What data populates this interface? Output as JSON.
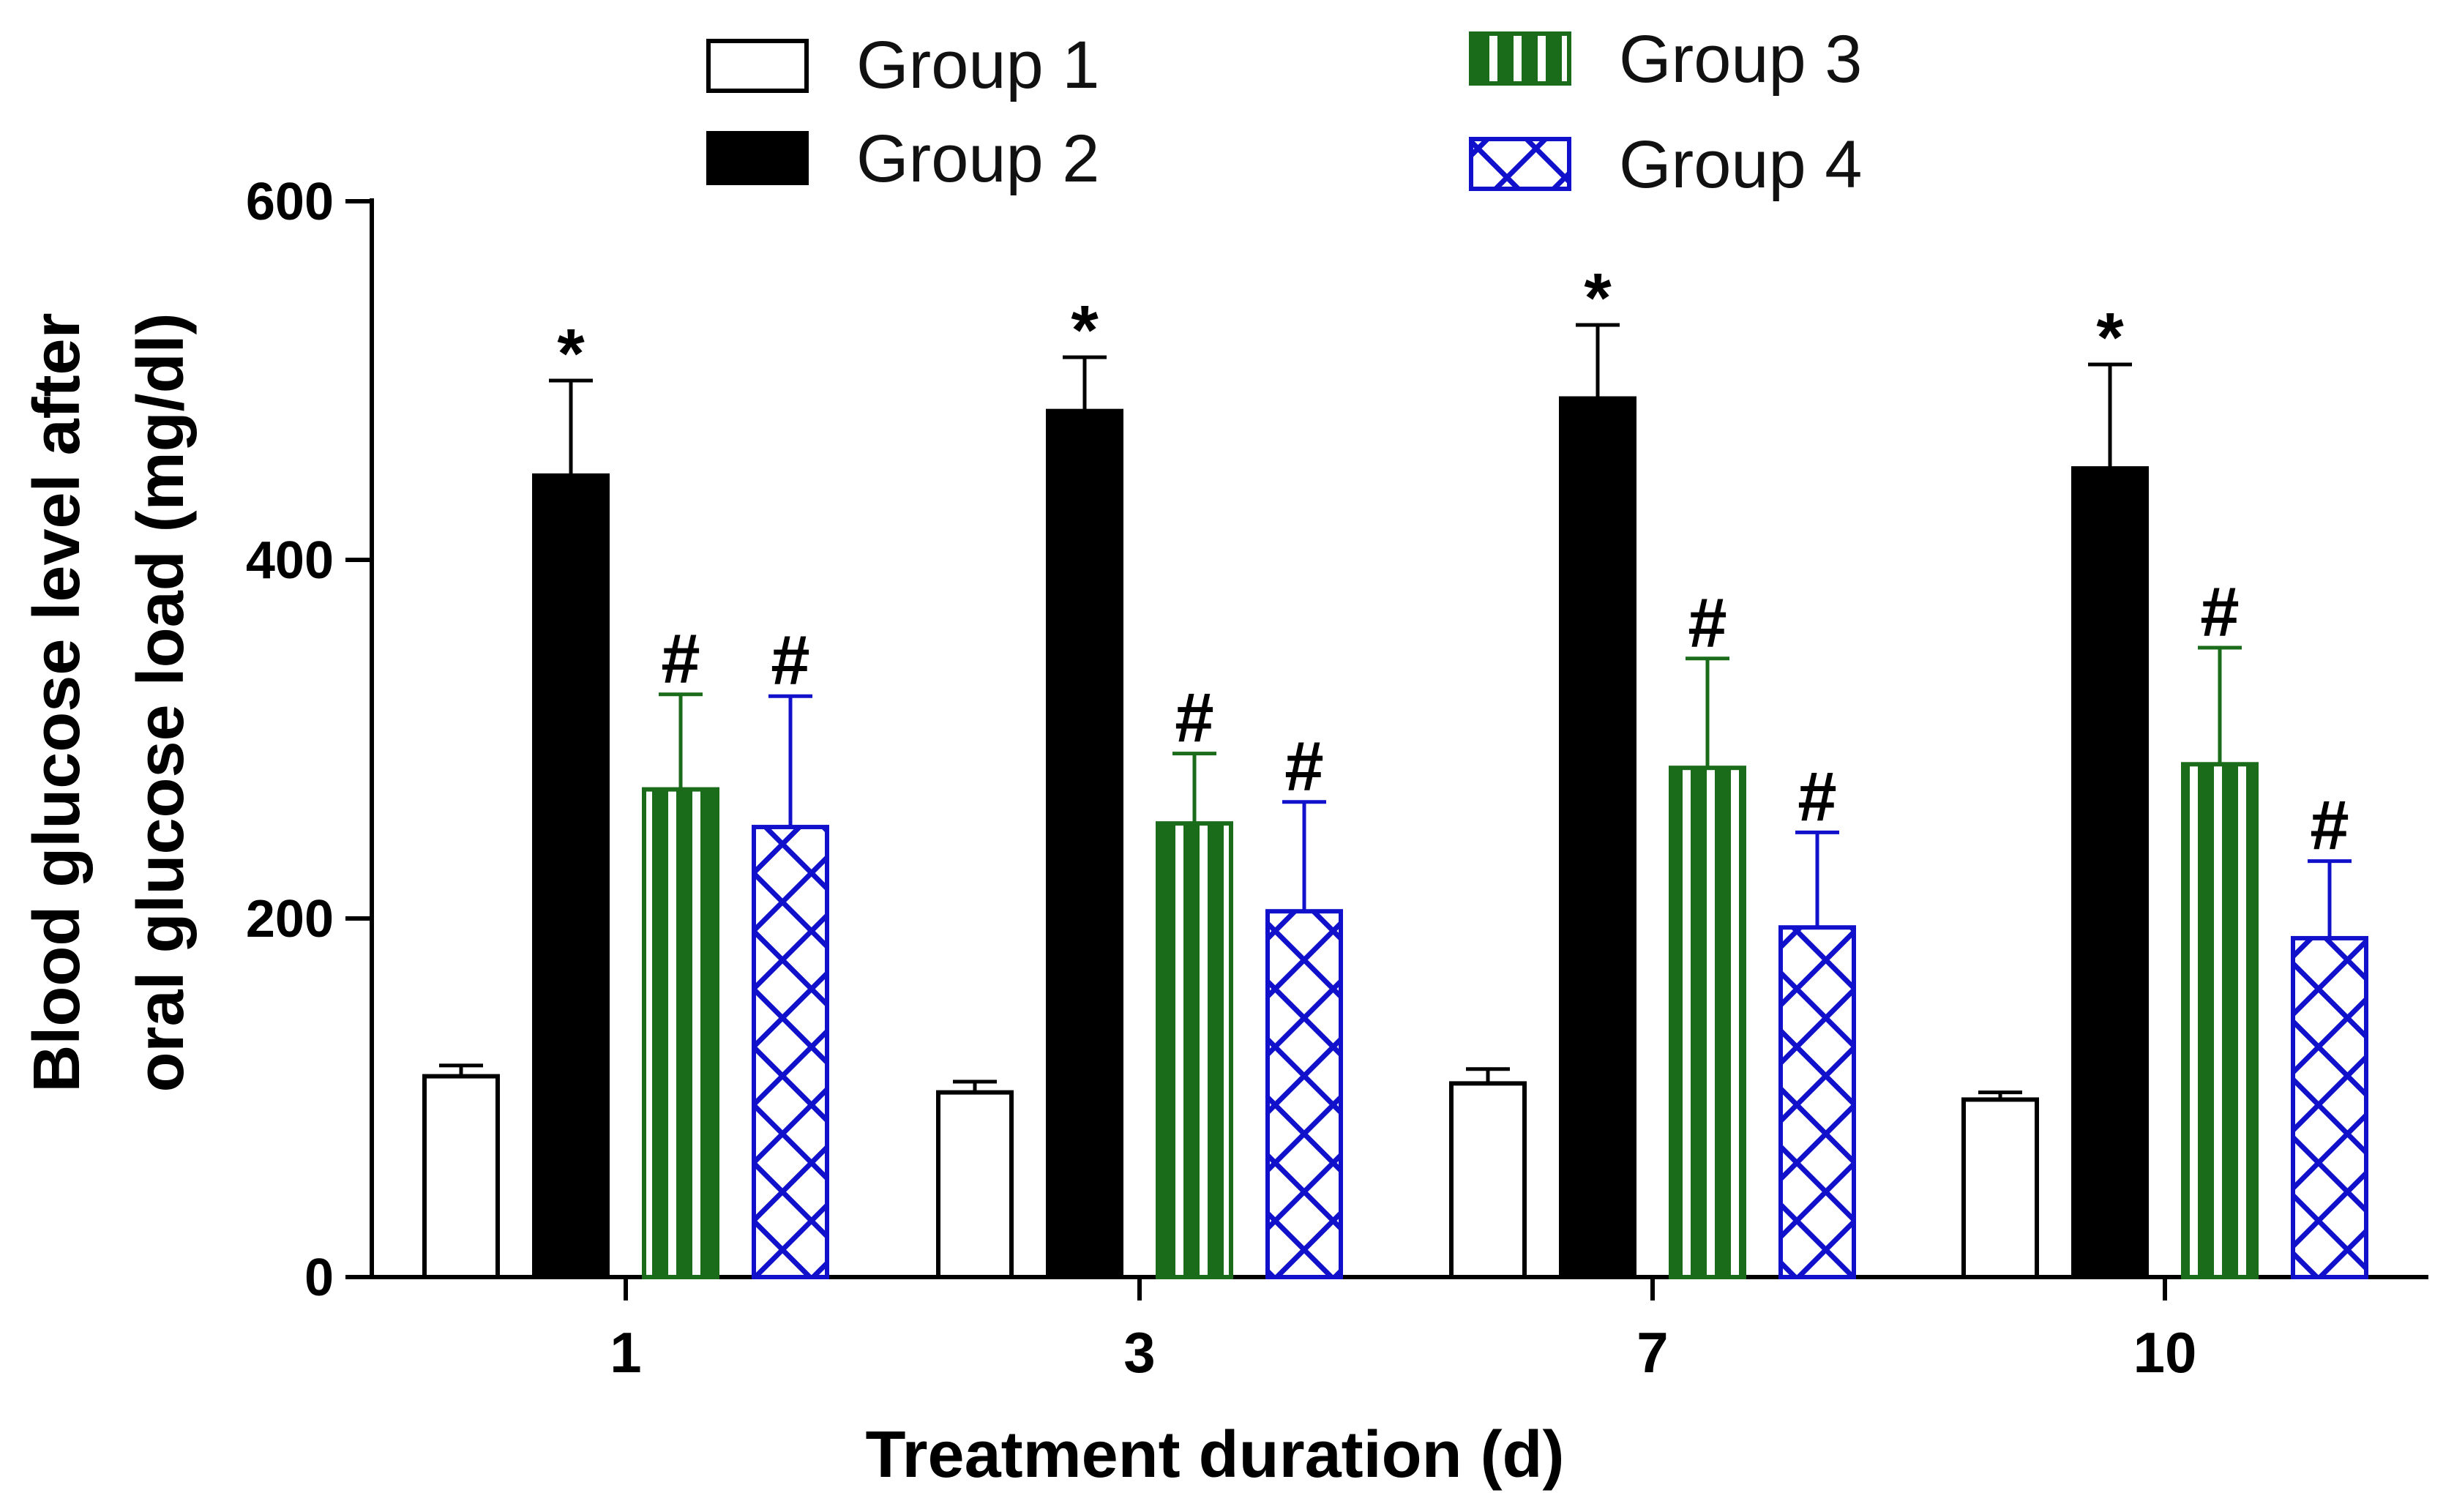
{
  "chart_data": {
    "type": "bar",
    "title": "",
    "xlabel": "Treatment duration (d)",
    "ylabel": [
      "Blood glucose level after",
      "oral glucose load  (mg/dl)"
    ],
    "ylim": [
      0,
      600
    ],
    "yticks": [
      0,
      200,
      400,
      600
    ],
    "categories": [
      "1",
      "3",
      "7",
      "10"
    ],
    "series": [
      {
        "name": "Group 1",
        "style": "open",
        "color": "#000000",
        "values": [
          112,
          103,
          108,
          99
        ],
        "errors": [
          6,
          6,
          8,
          4
        ],
        "sig": [
          "",
          "",
          "",
          ""
        ]
      },
      {
        "name": "Group 2",
        "style": "solid",
        "color": "#000000",
        "values": [
          447,
          483,
          490,
          451
        ],
        "errors": [
          53,
          30,
          41,
          58
        ],
        "sig": [
          "*",
          "*",
          "*",
          "*"
        ]
      },
      {
        "name": "Group 3",
        "style": "vstripe",
        "color": "#1a6b1a",
        "values": [
          272,
          253,
          284,
          286
        ],
        "errors": [
          53,
          39,
          61,
          65
        ],
        "sig": [
          "#",
          "#",
          "#",
          "#"
        ]
      },
      {
        "name": "Group 4",
        "style": "crosshatch",
        "color": "#1111cc",
        "values": [
          251,
          204,
          195,
          189
        ],
        "errors": [
          73,
          61,
          53,
          43
        ],
        "sig": [
          "#",
          "#",
          "#",
          "#"
        ]
      }
    ],
    "legend_position": "top"
  }
}
